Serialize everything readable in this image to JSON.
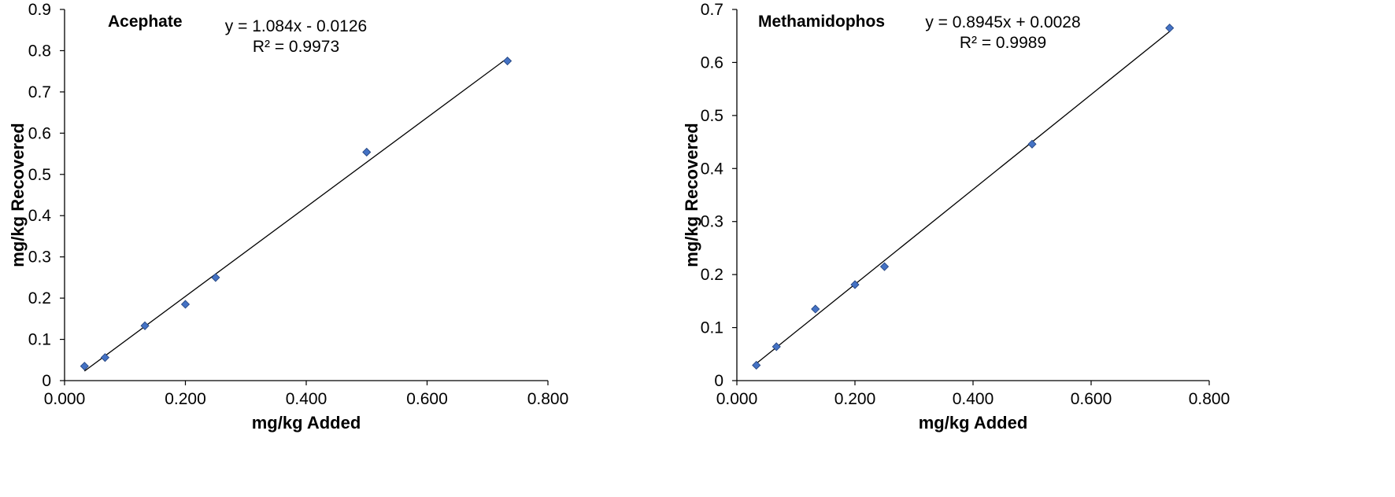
{
  "colors": {
    "marker": "#4472C4",
    "marker_edge": "#1F3F7A",
    "axis": "#000000",
    "trendline": "#000000"
  },
  "chart_data": [
    {
      "type": "scatter",
      "title": "Acephate",
      "equation": "y = 1.084x - 0.0126",
      "r_squared": "R² = 0.9973",
      "xlabel": "mg/kg Added",
      "ylabel": "mg/kg Recovered",
      "xlim": [
        0,
        0.8
      ],
      "ylim": [
        0,
        0.9
      ],
      "xticks": [
        "0.000",
        "0.200",
        "0.400",
        "0.600",
        "0.800"
      ],
      "yticks": [
        "0",
        "0.1",
        "0.2",
        "0.3",
        "0.4",
        "0.5",
        "0.6",
        "0.7",
        "0.8",
        "0.9"
      ],
      "marker": "diamond",
      "grid": false,
      "trendline": {
        "slope": 1.084,
        "intercept": -0.0126,
        "x_range": [
          0.033,
          0.733
        ]
      },
      "points": [
        {
          "x": 0.033,
          "y": 0.035
        },
        {
          "x": 0.067,
          "y": 0.056
        },
        {
          "x": 0.133,
          "y": 0.133
        },
        {
          "x": 0.2,
          "y": 0.185
        },
        {
          "x": 0.25,
          "y": 0.25
        },
        {
          "x": 0.5,
          "y": 0.554
        },
        {
          "x": 0.733,
          "y": 0.775
        }
      ]
    },
    {
      "type": "scatter",
      "title": "Methamidophos",
      "equation": "y = 0.8945x + 0.0028",
      "r_squared": "R² = 0.9989",
      "xlabel": "mg/kg Added",
      "ylabel": "mg/kg Recovered",
      "xlim": [
        0,
        0.8
      ],
      "ylim": [
        0,
        0.7
      ],
      "xticks": [
        "0.000",
        "0.200",
        "0.400",
        "0.600",
        "0.800"
      ],
      "yticks": [
        "0",
        "0.1",
        "0.2",
        "0.3",
        "0.4",
        "0.5",
        "0.6",
        "0.7"
      ],
      "marker": "diamond",
      "grid": false,
      "trendline": {
        "slope": 0.8945,
        "intercept": 0.0028,
        "x_range": [
          0.033,
          0.733
        ]
      },
      "points": [
        {
          "x": 0.033,
          "y": 0.029
        },
        {
          "x": 0.067,
          "y": 0.064
        },
        {
          "x": 0.133,
          "y": 0.135
        },
        {
          "x": 0.2,
          "y": 0.181
        },
        {
          "x": 0.25,
          "y": 0.215
        },
        {
          "x": 0.5,
          "y": 0.446
        },
        {
          "x": 0.733,
          "y": 0.665
        }
      ]
    }
  ]
}
